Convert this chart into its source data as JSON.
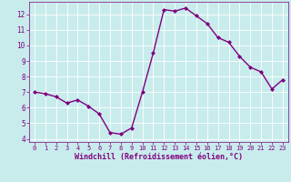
{
  "x": [
    0,
    1,
    2,
    3,
    4,
    5,
    6,
    7,
    8,
    9,
    10,
    11,
    12,
    13,
    14,
    15,
    16,
    17,
    18,
    19,
    20,
    21,
    22,
    23
  ],
  "y": [
    7.0,
    6.9,
    6.7,
    6.3,
    6.5,
    6.1,
    5.6,
    4.4,
    4.3,
    4.7,
    7.0,
    9.5,
    12.3,
    12.2,
    12.4,
    11.9,
    11.4,
    10.5,
    10.2,
    9.3,
    8.6,
    8.3,
    7.2,
    7.8
  ],
  "line_color": "#800080",
  "marker": "D",
  "marker_size": 2.0,
  "line_width": 1.0,
  "xlabel": "Windchill (Refroidissement éolien,°C)",
  "xlabel_fontsize": 6.0,
  "bg_color": "#c8ecec",
  "grid_color": "#b0d8d8",
  "tick_color": "#800080",
  "label_color": "#800080",
  "xlim": [
    -0.5,
    23.5
  ],
  "ylim": [
    3.8,
    12.8
  ],
  "yticks": [
    4,
    5,
    6,
    7,
    8,
    9,
    10,
    11,
    12
  ],
  "xticks": [
    0,
    1,
    2,
    3,
    4,
    5,
    6,
    7,
    8,
    9,
    10,
    11,
    12,
    13,
    14,
    15,
    16,
    17,
    18,
    19,
    20,
    21,
    22,
    23
  ]
}
